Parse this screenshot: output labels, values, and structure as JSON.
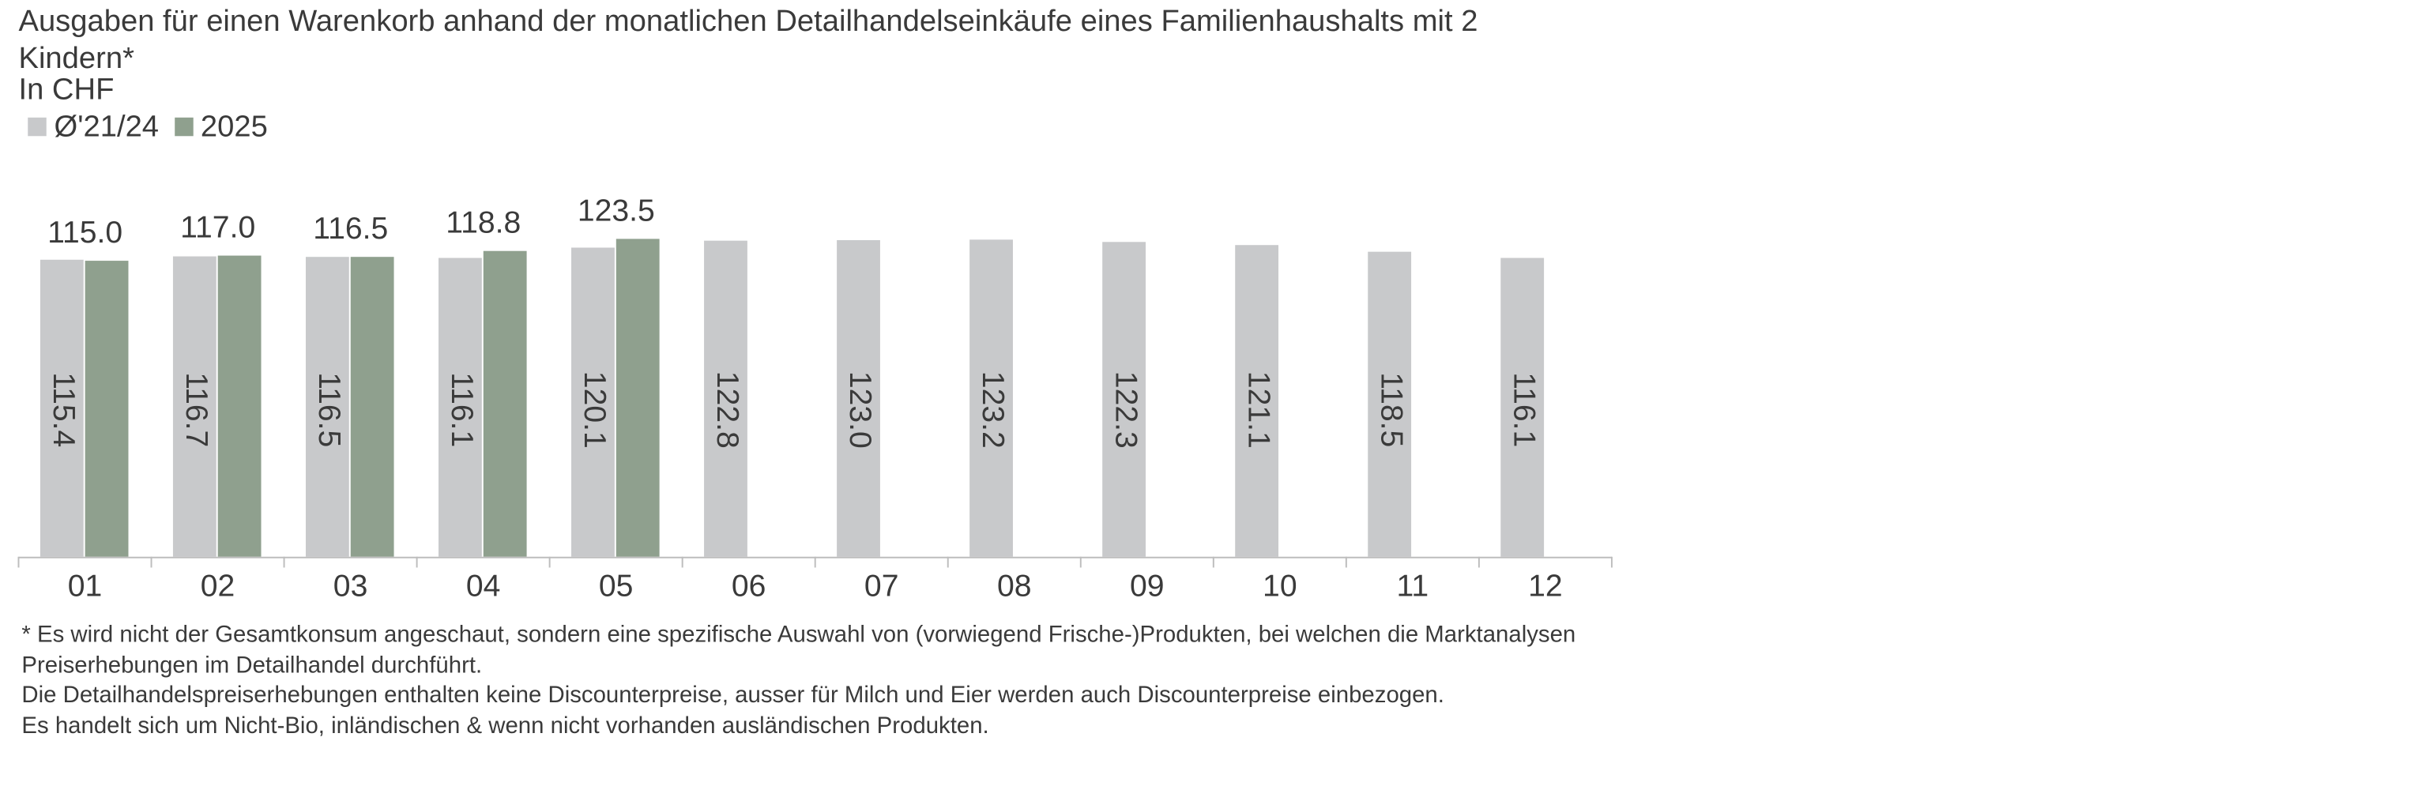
{
  "chart_data": {
    "type": "bar",
    "title": "Ausgaben für einen Warenkorb anhand der monatlichen Detailhandelseinkäufe eines Familienhaushalts mit 2 Kindern*",
    "subtitle": "In CHF",
    "categories": [
      "01",
      "02",
      "03",
      "04",
      "05",
      "06",
      "07",
      "08",
      "09",
      "10",
      "11",
      "12"
    ],
    "series": [
      {
        "name": "Ø'21/24",
        "color": "#c8c9cb",
        "values": [
          115.4,
          116.7,
          116.5,
          116.1,
          120.1,
          122.8,
          123.0,
          123.2,
          122.3,
          121.1,
          118.5,
          116.1
        ],
        "value_labels": [
          "115.4",
          "116.7",
          "116.5",
          "116.1",
          "120.1",
          "122.8",
          "123.0",
          "123.2",
          "122.3",
          "121.1",
          "118.5",
          "116.1"
        ]
      },
      {
        "name": "2025",
        "color": "#8fa08e",
        "values": [
          115.0,
          117.0,
          116.5,
          118.8,
          123.5,
          null,
          null,
          null,
          null,
          null,
          null,
          null
        ],
        "value_labels": [
          "115.0",
          "117.0",
          "116.5",
          "118.8",
          "123.5",
          null,
          null,
          null,
          null,
          null,
          null,
          null
        ]
      }
    ],
    "ylim": [
      0,
      140
    ],
    "legend": "top-left",
    "footnotes": [
      "* Es wird nicht der Gesamtkonsum angeschaut, sondern eine spezifische Auswahl von (vorwiegend Frische-)Produkten, bei welchen die Marktanalysen Preiserhebungen im Detailhandel durchführt.",
      "Die Detailhandelspreiserhebungen enthalten keine Discounterpreise, ausser für Milch und Eier werden auch Discounterpreise einbezogen.",
      "Es handelt sich um Nicht-Bio, inländischen & wenn nicht vorhanden ausländischen Produkten."
    ]
  }
}
